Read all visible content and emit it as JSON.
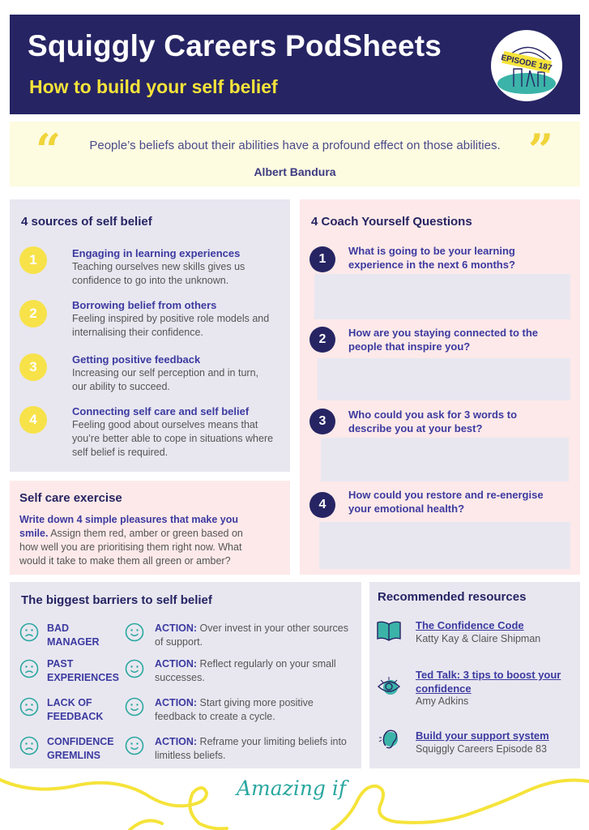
{
  "header": {
    "title": "Squiggly Careers PodSheets",
    "subtitle": "How to build your self belief",
    "badge": "EPISODE 187"
  },
  "quote": {
    "text": "People’s beliefs about their abilities have a profound effect on those abilities.",
    "author": "Albert Bandura"
  },
  "sources": {
    "heading": "4 sources of self belief",
    "items": [
      {
        "num": "1",
        "title": "Engaging in learning experiences",
        "desc": "Teaching ourselves new skills gives us confidence to go into the unknown."
      },
      {
        "num": "2",
        "title": "Borrowing belief from others",
        "desc": "Feeling inspired by positive role models and internalising their confidence."
      },
      {
        "num": "3",
        "title": "Getting positive feedback",
        "desc": "Increasing our self perception and in turn, our ability to succeed."
      },
      {
        "num": "4",
        "title": "Connecting self care and self belief",
        "desc": "Feeling good about ourselves means that you’re better able to cope in situations where self belief is required."
      }
    ]
  },
  "selfcare": {
    "heading": "Self care exercise",
    "bold": "Write down 4 simple pleasures that make you smile.",
    "rest": " Assign them red, amber or green based on how well you are prioritising them right now. What would it take to make them all green or amber?"
  },
  "coach": {
    "heading": "4 Coach Yourself Questions",
    "items": [
      {
        "num": "1",
        "q": "What is going to be your learning experience in the next 6 months?"
      },
      {
        "num": "2",
        "q": "How are you staying connected to the people that inspire you?"
      },
      {
        "num": "3",
        "q": "Who could you ask for 3 words to describe you at your best?"
      },
      {
        "num": "4",
        "q": "How could you restore and re-energise your emotional health?"
      }
    ]
  },
  "barriers": {
    "heading": "The biggest barriers to self belief",
    "action_label": "ACTION:",
    "items": [
      {
        "barrier": "BAD MANAGER",
        "action": " Over invest in your other sources of support."
      },
      {
        "barrier": "PAST EXPERIENCES",
        "action": " Reflect regularly on your small successes."
      },
      {
        "barrier": "LACK OF FEEDBACK",
        "action": " Start giving more positive feedback to create a cycle."
      },
      {
        "barrier": "CONFIDENCE GREMLINS",
        "action": " Reframe your limiting beliefs into limitless beliefs."
      }
    ]
  },
  "resources": {
    "heading": "Recommended resources",
    "items": [
      {
        "icon": "book-icon",
        "title": "The Confidence Code",
        "sub": "Katty Kay & Claire Shipman"
      },
      {
        "icon": "eye-icon",
        "title": "Ted Talk: 3 tips to boost your confidence",
        "sub": "Amy Adkins"
      },
      {
        "icon": "ear-icon",
        "title": "Build your support system",
        "sub": "Squiggly Careers Episode 83"
      }
    ]
  },
  "footer": {
    "brand": "Amazing if"
  },
  "colors": {
    "navy": "#262463",
    "yellow": "#f5e33a",
    "teal": "#2aa7a0",
    "pink": "#fde9e9",
    "lavender": "#e8e7f0"
  }
}
